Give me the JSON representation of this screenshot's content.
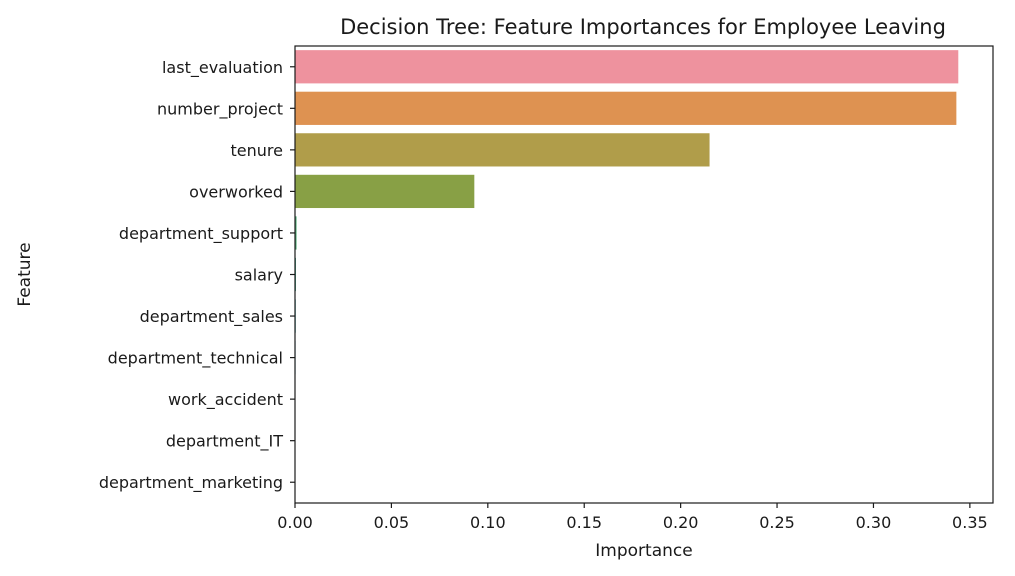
{
  "chart_data": {
    "type": "bar",
    "orientation": "horizontal",
    "title": "Decision Tree: Feature Importances for Employee Leaving",
    "xlabel": "Importance",
    "ylabel": "Feature",
    "xlim": [
      0,
      0.362
    ],
    "xticks": [
      0.0,
      0.05,
      0.1,
      0.15,
      0.2,
      0.25,
      0.3,
      0.35
    ],
    "xtick_labels": [
      "0.00",
      "0.05",
      "0.10",
      "0.15",
      "0.20",
      "0.25",
      "0.30",
      "0.35"
    ],
    "categories": [
      "last_evaluation",
      "number_project",
      "tenure",
      "overworked",
      "department_support",
      "salary",
      "department_sales",
      "department_technical",
      "work_accident",
      "department_IT",
      "department_marketing"
    ],
    "values": [
      0.344,
      0.343,
      0.215,
      0.093,
      0.0008,
      0.0005,
      0.0004,
      0.0003,
      0.0002,
      0.0001,
      0.0001
    ],
    "colors": [
      "#ee929e",
      "#de9251",
      "#b09d4a",
      "#88a045",
      "#4aa871",
      "#4aa88c",
      "#48a6a6",
      "#4ca4c4",
      "#8e9ee3",
      "#c68ce3",
      "#e98ad2"
    ],
    "grid": false,
    "legend": "none"
  }
}
